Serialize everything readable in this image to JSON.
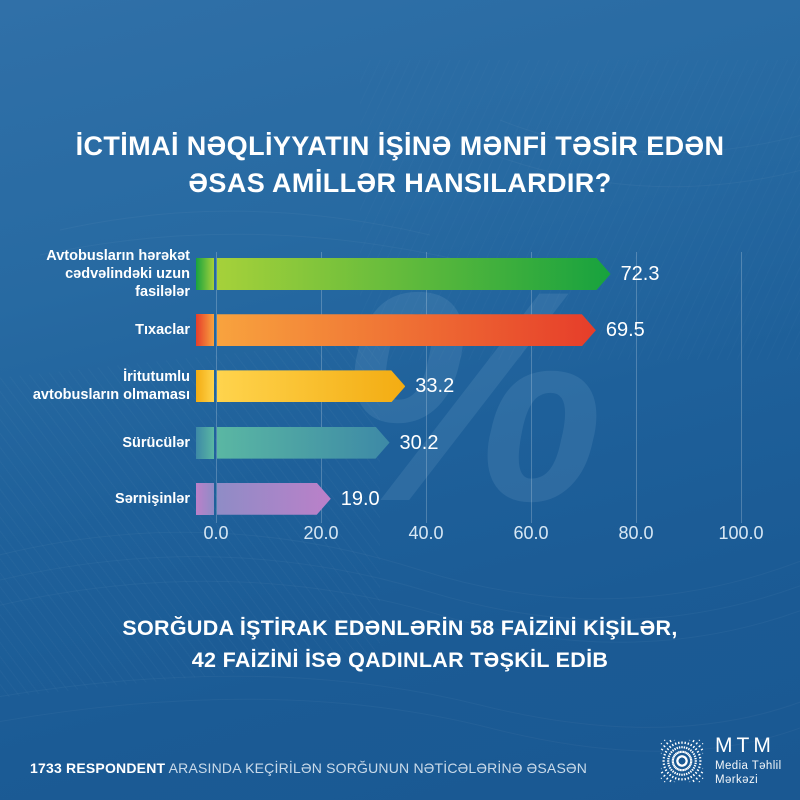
{
  "title": {
    "line1": "İCTİMAİ NƏQLİYYATIN İŞİNƏ MƏNFİ TƏSİR EDƏN",
    "line2": "ƏSAS AMİLLƏR HANSILARDIR?"
  },
  "watermark": "%",
  "chart_data": {
    "type": "bar",
    "orientation": "horizontal",
    "title": "İctimai nəqliyyatın işinə mənfi təsir edən əsas amillər hansılardır?",
    "categories": [
      "Avtobusların hərəkət cədvəlindəki uzun fasilələr",
      "Tıxaclar",
      "İritutumlu avtobusların olmaması",
      "Sürücülər",
      "Sərnişinlər"
    ],
    "category_lines": [
      [
        "Avtobusların hərəkət",
        "cədvəlindəki uzun fasilələr"
      ],
      [
        "Tıxaclar"
      ],
      [
        "İritutumlu",
        "avtobusların olmaması"
      ],
      [
        "Sürücülər"
      ],
      [
        "Sərnişinlər"
      ]
    ],
    "values": [
      72.3,
      69.5,
      33.2,
      30.2,
      19.0
    ],
    "value_labels": [
      "72.3",
      "69.5",
      "33.2",
      "30.2",
      "19.0"
    ],
    "unit": "%",
    "xlim": [
      0,
      100
    ],
    "x_ticks": [
      "0.0",
      "20.0",
      "40.0",
      "60.0",
      "80.0",
      "100.0"
    ],
    "grid": true,
    "legend": false,
    "bar_gradients": [
      {
        "from": "#a6d13a",
        "to": "#17a23e"
      },
      {
        "from": "#f8a33e",
        "to": "#e63d2a"
      },
      {
        "from": "#ffd44d",
        "to": "#f3ac12"
      },
      {
        "from": "#5ab7a3",
        "to": "#3d89a6"
      },
      {
        "from": "#8f8cc6",
        "to": "#bb80c9"
      }
    ]
  },
  "subtitle": {
    "line1": "SORĞUDA İŞTİRAK EDƏNLƏRİN 58 FAİZİNİ KİŞİLƏR,",
    "line2": "42 FAİZİNİ İSƏ QADINLAR TƏŞKİL EDİB"
  },
  "footer": {
    "respondents_bold": "1733 RESPONDENT",
    "text": "ARASINDA KEÇİRİLƏN SORĞUNUN NƏTİCƏLƏRİNƏ ƏSASƏN"
  },
  "logo": {
    "abbr": "MTM",
    "name_line1": "Media Təhlil",
    "name_line2": "Mərkəzi"
  }
}
